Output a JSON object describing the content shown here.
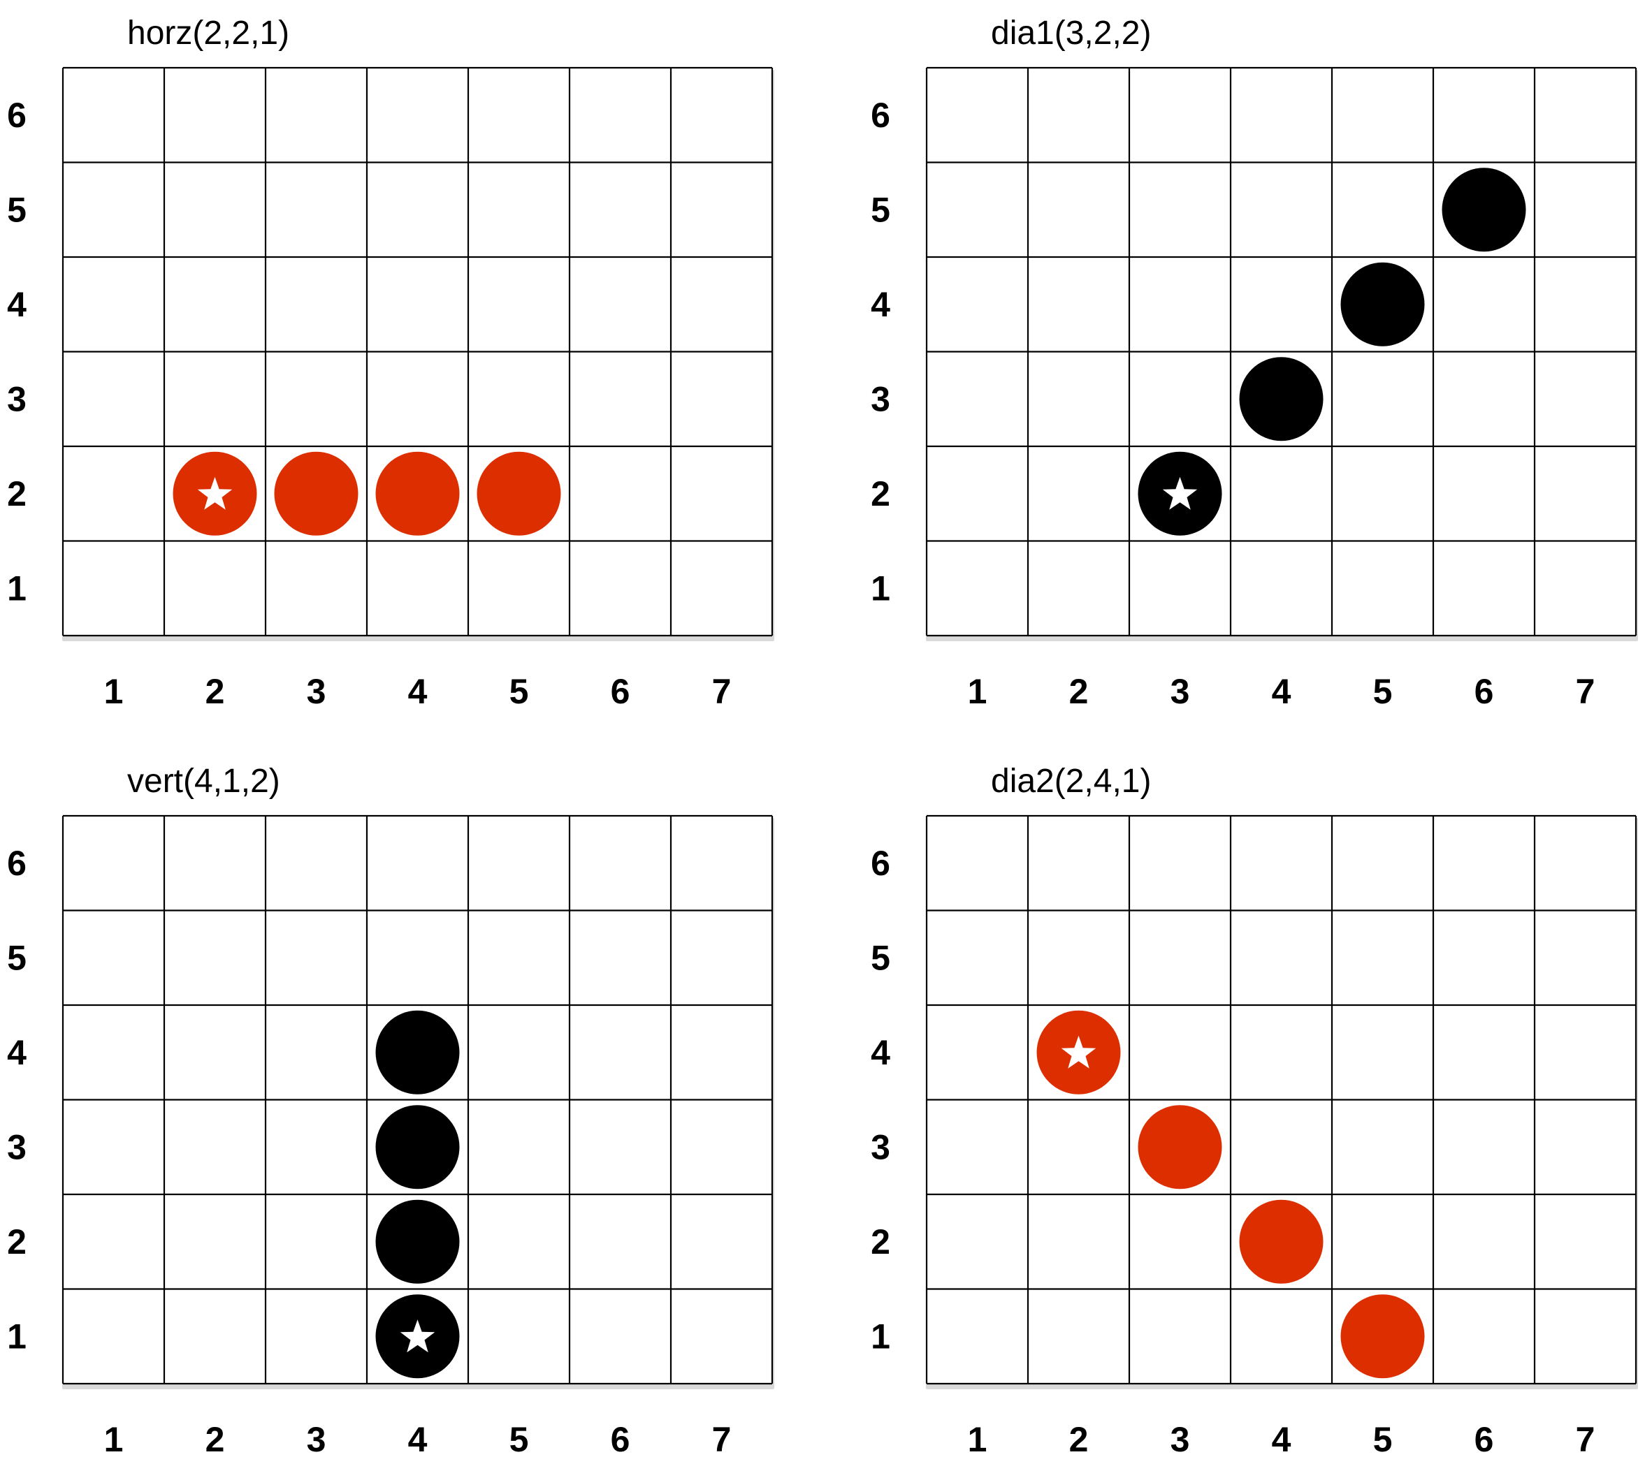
{
  "colors": {
    "red": "#DD2E00",
    "black": "#000000",
    "grid": "#000000",
    "star": "#FFFFFF"
  },
  "grid": {
    "columns": 7,
    "rows": 6,
    "column_labels": [
      "1",
      "2",
      "3",
      "4",
      "5",
      "6",
      "7"
    ],
    "row_labels": [
      "1",
      "2",
      "3",
      "4",
      "5",
      "6"
    ]
  },
  "panels": [
    {
      "id": "horz",
      "title": "horz(2,2,1)",
      "pieces": [
        {
          "col": 2,
          "row": 2,
          "color": "red",
          "star": true
        },
        {
          "col": 3,
          "row": 2,
          "color": "red",
          "star": false
        },
        {
          "col": 4,
          "row": 2,
          "color": "red",
          "star": false
        },
        {
          "col": 5,
          "row": 2,
          "color": "red",
          "star": false
        }
      ]
    },
    {
      "id": "dia1",
      "title": "dia1(3,2,2)",
      "pieces": [
        {
          "col": 3,
          "row": 2,
          "color": "black",
          "star": true
        },
        {
          "col": 4,
          "row": 3,
          "color": "black",
          "star": false
        },
        {
          "col": 5,
          "row": 4,
          "color": "black",
          "star": false
        },
        {
          "col": 6,
          "row": 5,
          "color": "black",
          "star": false
        }
      ]
    },
    {
      "id": "vert",
      "title": "vert(4,1,2)",
      "pieces": [
        {
          "col": 4,
          "row": 1,
          "color": "black",
          "star": true
        },
        {
          "col": 4,
          "row": 2,
          "color": "black",
          "star": false
        },
        {
          "col": 4,
          "row": 3,
          "color": "black",
          "star": false
        },
        {
          "col": 4,
          "row": 4,
          "color": "black",
          "star": false
        }
      ]
    },
    {
      "id": "dia2",
      "title": "dia2(2,4,1)",
      "pieces": [
        {
          "col": 2,
          "row": 4,
          "color": "red",
          "star": true
        },
        {
          "col": 3,
          "row": 3,
          "color": "red",
          "star": false
        },
        {
          "col": 4,
          "row": 2,
          "color": "red",
          "star": false
        },
        {
          "col": 5,
          "row": 1,
          "color": "red",
          "star": false
        }
      ]
    }
  ]
}
